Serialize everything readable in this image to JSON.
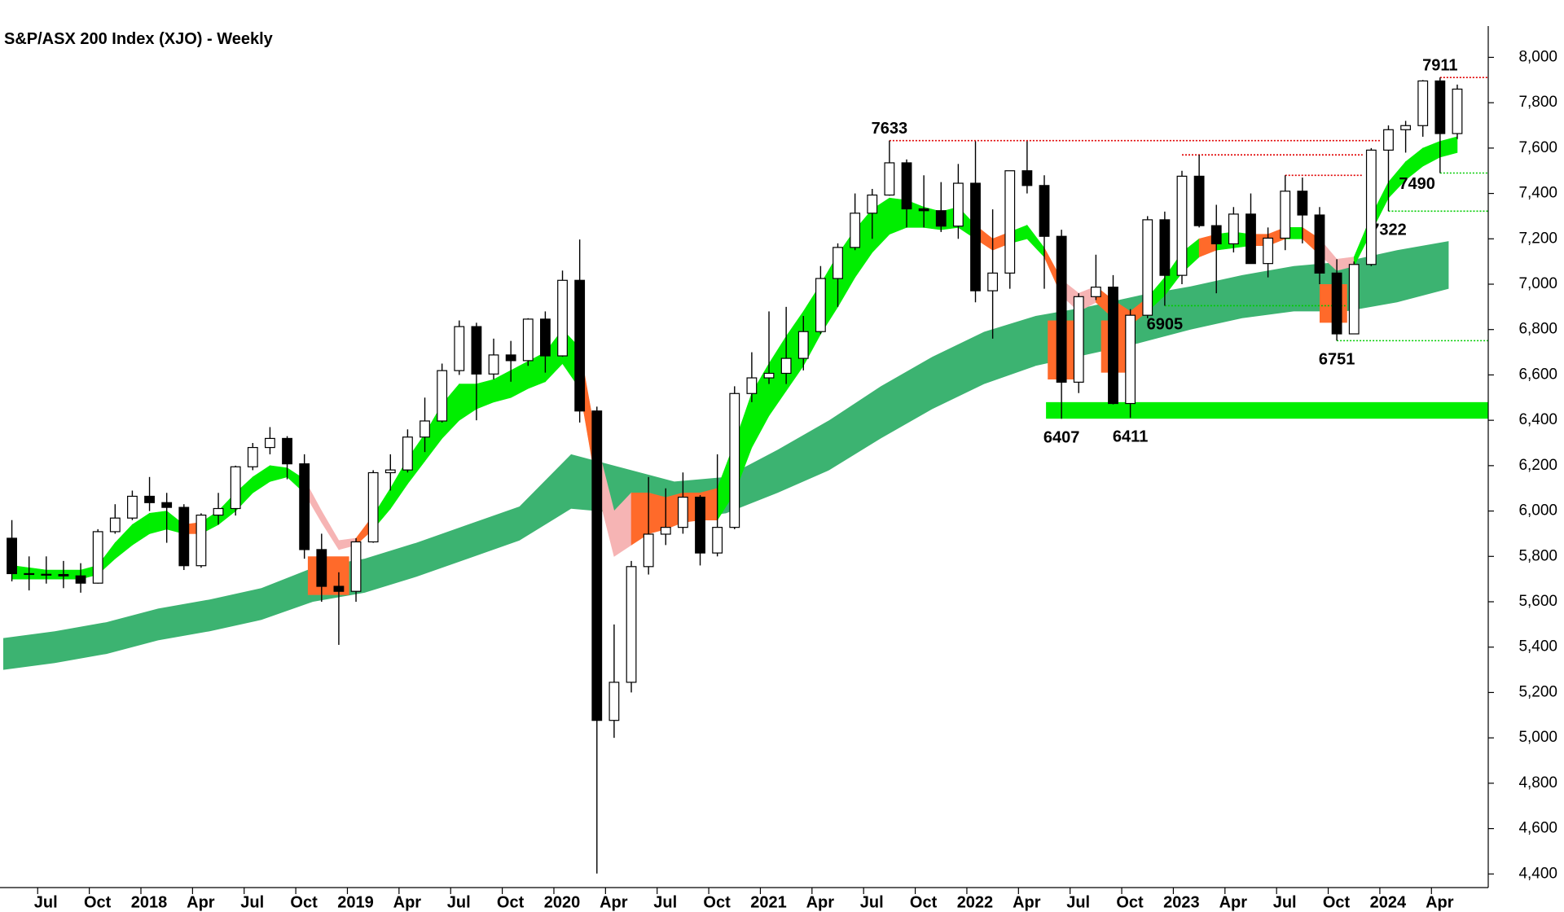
{
  "chart_data": {
    "type": "candlestick",
    "title": "S&P/ASX 200 Index (XJO) - Weekly",
    "xlim": [
      0,
      86.3
    ],
    "ylim": [
      4340,
      8120
    ],
    "xticks": [
      {
        "value": 2,
        "label": "Jul"
      },
      {
        "value": 5,
        "label": "Oct"
      },
      {
        "value": 8,
        "label": "2018"
      },
      {
        "value": 11,
        "label": "Apr"
      },
      {
        "value": 14,
        "label": "Jul"
      },
      {
        "value": 17,
        "label": "Oct"
      },
      {
        "value": 20,
        "label": "2019"
      },
      {
        "value": 23,
        "label": "Apr"
      },
      {
        "value": 26,
        "label": "Jul"
      },
      {
        "value": 29,
        "label": "Oct"
      },
      {
        "value": 32,
        "label": "2020"
      },
      {
        "value": 35,
        "label": "Apr"
      },
      {
        "value": 38,
        "label": "Jul"
      },
      {
        "value": 41,
        "label": "Oct"
      },
      {
        "value": 44,
        "label": "2021"
      },
      {
        "value": 47,
        "label": "Apr"
      },
      {
        "value": 50,
        "label": "Jul"
      },
      {
        "value": 53,
        "label": "Oct"
      },
      {
        "value": 56,
        "label": "2022"
      },
      {
        "value": 59,
        "label": "Apr"
      },
      {
        "value": 62,
        "label": "Jul"
      },
      {
        "value": 65,
        "label": "Oct"
      },
      {
        "value": 68,
        "label": "2023"
      },
      {
        "value": 71,
        "label": "Apr"
      },
      {
        "value": 74,
        "label": "Jul"
      },
      {
        "value": 77,
        "label": "Oct"
      },
      {
        "value": 80,
        "label": "2024"
      },
      {
        "value": 83,
        "label": "Apr"
      }
    ],
    "yticks": [
      {
        "value": 4400,
        "label": "4,400"
      },
      {
        "value": 4600,
        "label": "4,600"
      },
      {
        "value": 4800,
        "label": "4,800"
      },
      {
        "value": 5000,
        "label": "5,000"
      },
      {
        "value": 5200,
        "label": "5,200"
      },
      {
        "value": 5400,
        "label": "5,400"
      },
      {
        "value": 5600,
        "label": "5,600"
      },
      {
        "value": 5800,
        "label": "5,800"
      },
      {
        "value": 6000,
        "label": "6,000"
      },
      {
        "value": 6200,
        "label": "6,200"
      },
      {
        "value": 6400,
        "label": "6,400"
      },
      {
        "value": 6600,
        "label": "6,600"
      },
      {
        "value": 6800,
        "label": "6,800"
      },
      {
        "value": 7000,
        "label": "7,000"
      },
      {
        "value": 7200,
        "label": "7,200"
      },
      {
        "value": 7400,
        "label": "7,400"
      },
      {
        "value": 7600,
        "label": "7,600"
      },
      {
        "value": 7800,
        "label": "7,800"
      },
      {
        "value": 8000,
        "label": "8,000"
      }
    ],
    "x": [
      0.5,
      1.5,
      2.5,
      3.5,
      4.5,
      5.5,
      6.5,
      7.5,
      8.5,
      9.5,
      10.5,
      11.5,
      12.5,
      13.5,
      14.5,
      15.5,
      16.5,
      17.5,
      18.5,
      19.5,
      20.5,
      21.5,
      22.5,
      23.5,
      24.5,
      25.5,
      26.5,
      27.5,
      28.5,
      29.5,
      30.5,
      31.5,
      32.5,
      33.5,
      34.5,
      35.5,
      36.5,
      37.5,
      38.5,
      39.5,
      40.5,
      41.5,
      42.5,
      43.5,
      44.5,
      45.5,
      46.5,
      47.5,
      48.5,
      49.5,
      50.5,
      51.5,
      52.5,
      53.5,
      54.5,
      55.5,
      56.5,
      57.5,
      58.5,
      59.5,
      60.5,
      61.5,
      62.5,
      63.5,
      64.5,
      65.5,
      66.5,
      67.5,
      68.5,
      69.5,
      70.5,
      71.5,
      72.5,
      73.5,
      74.5,
      75.5,
      76.5,
      77.5,
      78.5,
      79.5,
      80.5,
      81.5,
      82.5,
      83.5,
      84.5
    ],
    "open": [
      5880,
      5724,
      5721,
      5720,
      5714,
      5682,
      5909,
      5969,
      6065,
      6037,
      6016,
      5759,
      5982,
      6011,
      6195,
      6280,
      6320,
      6208,
      5830,
      5668,
      5646,
      5864,
      6169,
      6181,
      6326,
      6397,
      6619,
      6813,
      6604,
      6688,
      6663,
      6846,
      6684,
      7017,
      6441,
      5077,
      5245,
      5755,
      5898,
      5928,
      6061,
      5815,
      5928,
      6518,
      6587,
      6607,
      6673,
      6791,
      7025,
      7162,
      7313,
      7393,
      7535,
      7332,
      7324,
      7256,
      7445,
      6971,
      7049,
      7500,
      7435,
      7211,
      6568,
      6945,
      6987,
      6474,
      6863,
      7284,
      7039,
      7476,
      7258,
      7178,
      7309,
      7091,
      7203,
      7410,
      7305,
      7049,
      6781,
      7087,
      7591,
      7681,
      7699,
      7896,
      7664
    ],
    "high": [
      5960,
      5800,
      5800,
      5780,
      5770,
      5920,
      6030,
      6090,
      6150,
      6080,
      6030,
      5990,
      6080,
      6200,
      6300,
      6370,
      6330,
      6250,
      5900,
      5730,
      5880,
      6180,
      6250,
      6360,
      6500,
      6650,
      6840,
      6830,
      6760,
      6750,
      6850,
      6880,
      7060,
      7197,
      6460,
      5500,
      5780,
      6150,
      6100,
      6170,
      6070,
      6250,
      6550,
      6700,
      6880,
      6900,
      6860,
      7080,
      7180,
      7400,
      7420,
      7633,
      7550,
      7480,
      7450,
      7530,
      7630,
      7330,
      7500,
      7630,
      7480,
      7240,
      6960,
      7130,
      7040,
      6890,
      7300,
      7320,
      7500,
      7570,
      7350,
      7340,
      7400,
      7250,
      7480,
      7470,
      7340,
      7110,
      7100,
      7600,
      7700,
      7720,
      7900,
      7911,
      7880
    ],
    "low": [
      5690,
      5650,
      5680,
      5660,
      5640,
      5680,
      5900,
      5960,
      6000,
      5860,
      5740,
      5750,
      5940,
      5980,
      6180,
      6250,
      6140,
      5790,
      5600,
      5410,
      5600,
      5860,
      6090,
      6170,
      6260,
      6390,
      6600,
      6400,
      6580,
      6570,
      6640,
      6610,
      6680,
      6390,
      4402,
      5000,
      5200,
      5720,
      5850,
      5900,
      5760,
      5800,
      5920,
      6480,
      6560,
      6560,
      6620,
      6780,
      6900,
      7150,
      7200,
      7390,
      7250,
      7250,
      7230,
      7200,
      6920,
      6760,
      6980,
      7400,
      6980,
      6407,
      6520,
      6930,
      6470,
      6411,
      6850,
      6905,
      7000,
      7250,
      6960,
      7140,
      7090,
      7030,
      7150,
      7180,
      7000,
      6751,
      6780,
      7080,
      7322,
      7580,
      7650,
      7490,
      7640
    ],
    "close": [
      5724,
      5721,
      5720,
      5714,
      5682,
      5909,
      5969,
      6065,
      6037,
      6016,
      5759,
      5982,
      6011,
      6195,
      6280,
      6320,
      6208,
      5830,
      5668,
      5646,
      5864,
      6169,
      6181,
      6326,
      6397,
      6619,
      6813,
      6604,
      6688,
      6663,
      6846,
      6684,
      7017,
      6441,
      5077,
      5245,
      5755,
      5898,
      5928,
      6061,
      5815,
      5928,
      6518,
      6587,
      6607,
      6673,
      6791,
      7025,
      7162,
      7313,
      7393,
      7535,
      7332,
      7324,
      7256,
      7445,
      6971,
      7049,
      7500,
      7435,
      7211,
      6568,
      6945,
      6987,
      6474,
      6863,
      7284,
      7039,
      7476,
      7258,
      7178,
      7309,
      7091,
      7203,
      7410,
      7305,
      7049,
      6781,
      7087,
      7591,
      7681,
      7699,
      7896,
      7664,
      7860
    ],
    "up_color": "#ffffff",
    "down_color": "#000000",
    "short_band": {
      "lower": [
        5700,
        5700,
        5700,
        5700,
        5700,
        5720,
        5790,
        5850,
        5900,
        5920,
        5900,
        5900,
        5940,
        6000,
        6080,
        6130,
        6150,
        6080,
        5950,
        5830,
        5850,
        5920,
        6010,
        6120,
        6220,
        6320,
        6400,
        6450,
        6480,
        6500,
        6540,
        6570,
        6650,
        6540,
        6100,
        5800,
        5850,
        5900,
        5920,
        5950,
        5960,
        5960,
        6080,
        6280,
        6420,
        6530,
        6640,
        6780,
        6900,
        7030,
        7140,
        7220,
        7250,
        7250,
        7240,
        7250,
        7200,
        7150,
        7180,
        7200,
        7120,
        6950,
        6880,
        6920,
        6850,
        6820,
        6880,
        6950,
        7050,
        7120,
        7150,
        7160,
        7170,
        7170,
        7200,
        7200,
        7130,
        7060,
        7080,
        7230,
        7380,
        7460,
        7520,
        7560,
        7580
      ],
      "upper": [
        5760,
        5750,
        5740,
        5740,
        5740,
        5760,
        5860,
        5940,
        5990,
        6000,
        5940,
        5950,
        6000,
        6080,
        6150,
        6200,
        6190,
        6140,
        6000,
        5870,
        5880,
        5980,
        6100,
        6230,
        6340,
        6470,
        6560,
        6560,
        6580,
        6620,
        6660,
        6700,
        6800,
        6720,
        6300,
        6000,
        6080,
        6080,
        6060,
        6080,
        6080,
        6100,
        6300,
        6520,
        6650,
        6770,
        6880,
        7000,
        7130,
        7240,
        7330,
        7380,
        7370,
        7340,
        7320,
        7340,
        7260,
        7200,
        7230,
        7260,
        7160,
        7020,
        6960,
        6990,
        6930,
        6880,
        6940,
        7030,
        7140,
        7200,
        7220,
        7230,
        7220,
        7220,
        7250,
        7250,
        7200,
        7110,
        7120,
        7300,
        7450,
        7540,
        7600,
        7630,
        7650
      ],
      "colors": [
        "#00ee00",
        "#00ee00",
        "#00ee00",
        "#00ee00",
        "#00ee00",
        "#00ee00",
        "#00ee00",
        "#00ee00",
        "#00ee00",
        "#00ee00",
        "#ff6a2a",
        "#00ee00",
        "#00ee00",
        "#00ee00",
        "#00ee00",
        "#00ee00",
        "#00ee00",
        "#f6b4b4",
        "#f6b4b4",
        "#f6b4b4",
        "#ff6a2a",
        "#00ee00",
        "#00ee00",
        "#00ee00",
        "#00ee00",
        "#00ee00",
        "#00ee00",
        "#00ee00",
        "#00ee00",
        "#00ee00",
        "#00ee00",
        "#00ee00",
        "#00ee00",
        "#ff6a2a",
        "#f6b4b4",
        "#f6b4b4",
        "#ff6a2a",
        "#ff6a2a",
        "#ff6a2a",
        "#ff6a2a",
        "#ff6a2a",
        "#00ee00",
        "#00ee00",
        "#00ee00",
        "#00ee00",
        "#00ee00",
        "#00ee00",
        "#00ee00",
        "#00ee00",
        "#00ee00",
        "#00ee00",
        "#00ee00",
        "#00ee00",
        "#00ee00",
        "#00ee00",
        "#00ee00",
        "#ff6a2a",
        "#ff6a2a",
        "#00ee00",
        "#00ee00",
        "#ff6a2a",
        "#f6b4b4",
        "#f6b4b4",
        "#ff6a2a",
        "#ff6a2a",
        "#ff6a2a",
        "#00ee00",
        "#00ee00",
        "#00ee00",
        "#ff6a2a",
        "#00ee00",
        "#00ee00",
        "#ff6a2a",
        "#ff6a2a",
        "#00ee00",
        "#ff6a2a",
        "#f6b4b4",
        "#f6b4b4",
        "#00ee00",
        "#00ee00",
        "#00ee00",
        "#00ee00",
        "#00ee00",
        "#00ee00",
        "#00ee00"
      ]
    },
    "long_band": {
      "color": "#3cb371",
      "x": [
        0,
        3,
        6,
        9,
        12,
        15,
        18,
        21,
        24,
        27,
        30,
        33,
        36,
        39,
        42,
        45,
        48,
        51,
        54,
        57,
        60,
        63,
        66,
        69,
        72,
        75,
        78,
        81,
        84
      ],
      "lower": [
        5300,
        5330,
        5370,
        5430,
        5470,
        5520,
        5600,
        5640,
        5710,
        5790,
        5870,
        6010,
        5990,
        5960,
        5990,
        6080,
        6180,
        6320,
        6450,
        6560,
        6640,
        6690,
        6740,
        6800,
        6850,
        6880,
        6880,
        6920,
        6980
      ],
      "upper": [
        5440,
        5470,
        5510,
        5570,
        5610,
        5660,
        5750,
        5790,
        5860,
        5940,
        6020,
        6250,
        6190,
        6130,
        6150,
        6270,
        6400,
        6550,
        6680,
        6790,
        6860,
        6900,
        6950,
        6990,
        7040,
        7080,
        7100,
        7150,
        7190
      ]
    },
    "zones": [
      {
        "x0": 17.7,
        "x1": 20.1,
        "lo": 5630,
        "hi": 5800,
        "color": "#ff6a2a"
      },
      {
        "x0": 60.7,
        "x1": 62.4,
        "lo": 6580,
        "hi": 6840,
        "color": "#ff6a2a"
      },
      {
        "x0": 63.8,
        "x1": 65.4,
        "lo": 6610,
        "hi": 6840,
        "color": "#ff6a2a"
      },
      {
        "x0": 76.5,
        "x1": 78.1,
        "lo": 6830,
        "hi": 7000,
        "color": "#ff6a2a"
      },
      {
        "x0": 60.6,
        "x1": 86.3,
        "lo": 6407,
        "hi": 6480,
        "color": "#00ee00"
      }
    ],
    "levels": [
      {
        "value": 7911,
        "from": 83.5,
        "to": 86.3,
        "color": "#e00000",
        "label_pos": "above"
      },
      {
        "value": 7633,
        "from": 51.5,
        "to": 80.0,
        "color": "#e00000",
        "label_pos": "above"
      },
      {
        "value": 7570,
        "from": 68.5,
        "to": 79.0,
        "color": "#e00000",
        "label_pos": "none"
      },
      {
        "value": 7480,
        "from": 74.5,
        "to": 79.0,
        "color": "#e00000",
        "label_pos": "none"
      },
      {
        "value": 7490,
        "from": 83.5,
        "to": 86.3,
        "color": "#00cc00",
        "label_pos": "left"
      },
      {
        "value": 7322,
        "from": 80.5,
        "to": 86.3,
        "color": "#00cc00",
        "label_pos": "below"
      },
      {
        "value": 6905,
        "from": 67.5,
        "to": 78.0,
        "color": "#00cc00",
        "label_pos": "below"
      },
      {
        "value": 6751,
        "from": 77.5,
        "to": 86.3,
        "color": "#00cc00",
        "label_pos": "below"
      },
      {
        "value": 6407,
        "from": 61.5,
        "to": 61.5,
        "color": "none",
        "label_pos": "below"
      },
      {
        "value": 6411,
        "from": 65.5,
        "to": 65.5,
        "color": "none",
        "label_pos": "below"
      }
    ]
  }
}
